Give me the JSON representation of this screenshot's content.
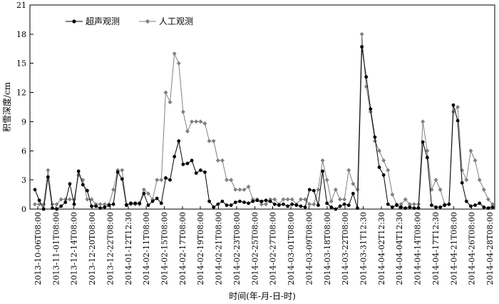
{
  "chart_data": {
    "type": "line",
    "xlabel": "时间(年-月-日-时)",
    "ylabel": "积雪深度/cm",
    "ylim": [
      0,
      21
    ],
    "yticks": [
      0,
      3,
      6,
      9,
      12,
      15,
      18,
      21
    ],
    "grid": false,
    "legend_position": "top-left",
    "x_tick_labels": [
      "2013-10-06T08:00",
      "2013-11-01T08:00",
      "2013-12-14T08:00",
      "2013-12-20T08:00",
      "2013-12-22T08:00",
      "2014-01-12T12:30",
      "2014-02-11T08:00",
      "2014-02-15T08:00",
      "2014-02-17T08:00",
      "2014-02-19T08:00",
      "2014-02-21T08:00",
      "2014-02-23T08:00",
      "2014-02-25T08:00",
      "2014-02-27T08:00",
      "2014-03-01T08:00",
      "2014-03-09T08:00",
      "2014-03-18T08:00",
      "2014-03-22T08:00",
      "2014-03-31T12:30",
      "2014-04-02T12:30",
      "2014-04-04T12:30",
      "2014-04-14T08:00",
      "2014-04-17T12:30",
      "2014-04-21T08:00",
      "2014-04-26T08:00",
      "2014-04-28T08:00"
    ],
    "series": [
      {
        "name": "超声观测",
        "color": "#000000",
        "marker": "circle",
        "values": [
          2.0,
          0.9,
          0.0,
          3.3,
          0.1,
          0.0,
          0.3,
          0.7,
          2.6,
          0.5,
          3.9,
          2.5,
          1.9,
          0.3,
          0.3,
          0.1,
          0.2,
          0.4,
          0.5,
          3.8,
          3.1,
          0.4,
          0.6,
          0.6,
          0.6,
          1.6,
          0.4,
          0.8,
          1.1,
          0.6,
          3.2,
          3.0,
          5.4,
          7.0,
          4.6,
          4.7,
          5.0,
          3.7,
          4.0,
          3.8,
          0.8,
          0.2,
          0.5,
          0.8,
          0.4,
          0.4,
          0.7,
          0.8,
          0.7,
          0.6,
          0.8,
          0.9,
          0.8,
          0.9,
          0.8,
          0.5,
          0.4,
          0.5,
          0.3,
          0.5,
          0.4,
          0.3,
          0.2,
          2.0,
          1.9,
          0.4,
          3.9,
          0.6,
          0.2,
          0.0,
          0.3,
          0.5,
          0.4,
          1.6,
          0.1,
          16.7,
          13.6,
          10.3,
          7.4,
          4.3,
          3.5,
          0.5,
          0.2,
          0.4,
          0.2,
          0.1,
          0.2,
          0.1,
          0.1,
          6.9,
          5.3,
          0.4,
          0.2,
          0.2,
          0.4,
          0.5,
          10.7,
          9.1,
          2.7,
          0.8,
          0.3,
          0.4,
          0.6,
          0.2,
          0.1,
          0.2
        ]
      },
      {
        "name": "人工观测",
        "color": "#808080",
        "marker": "diamond",
        "values": [
          0.5,
          0.5,
          0.5,
          4.0,
          0.5,
          0.5,
          1.0,
          1.0,
          1.0,
          1.0,
          3.5,
          3.0,
          1.0,
          1.0,
          0.5,
          0.5,
          0.5,
          0.5,
          2.0,
          4.0,
          4.0,
          0.5,
          0.5,
          0.5,
          0.5,
          2.0,
          1.6,
          1.0,
          3.0,
          3.0,
          12.0,
          11.0,
          16.0,
          15.0,
          10.0,
          8.0,
          9.0,
          9.0,
          9.0,
          8.8,
          7.0,
          7.0,
          5.0,
          5.0,
          3.0,
          3.0,
          2.0,
          2.0,
          2.0,
          2.3,
          1.0,
          1.0,
          0.5,
          0.5,
          1.0,
          1.0,
          0.5,
          1.0,
          1.0,
          1.0,
          0.5,
          1.0,
          1.0,
          0.5,
          0.5,
          2.0,
          5.0,
          3.0,
          0.8,
          2.0,
          1.0,
          1.0,
          4.0,
          2.6,
          2.0,
          18.0,
          12.6,
          10.0,
          7.0,
          6.0,
          5.0,
          4.0,
          1.5,
          0.5,
          0.5,
          1.0,
          0.5,
          0.5,
          0.5,
          9.0,
          6.0,
          2.0,
          3.0,
          2.0,
          0.5,
          0.5,
          10.0,
          10.5,
          4.0,
          3.0,
          6.0,
          5.0,
          3.0,
          2.0,
          1.0,
          0.5
        ]
      }
    ]
  }
}
